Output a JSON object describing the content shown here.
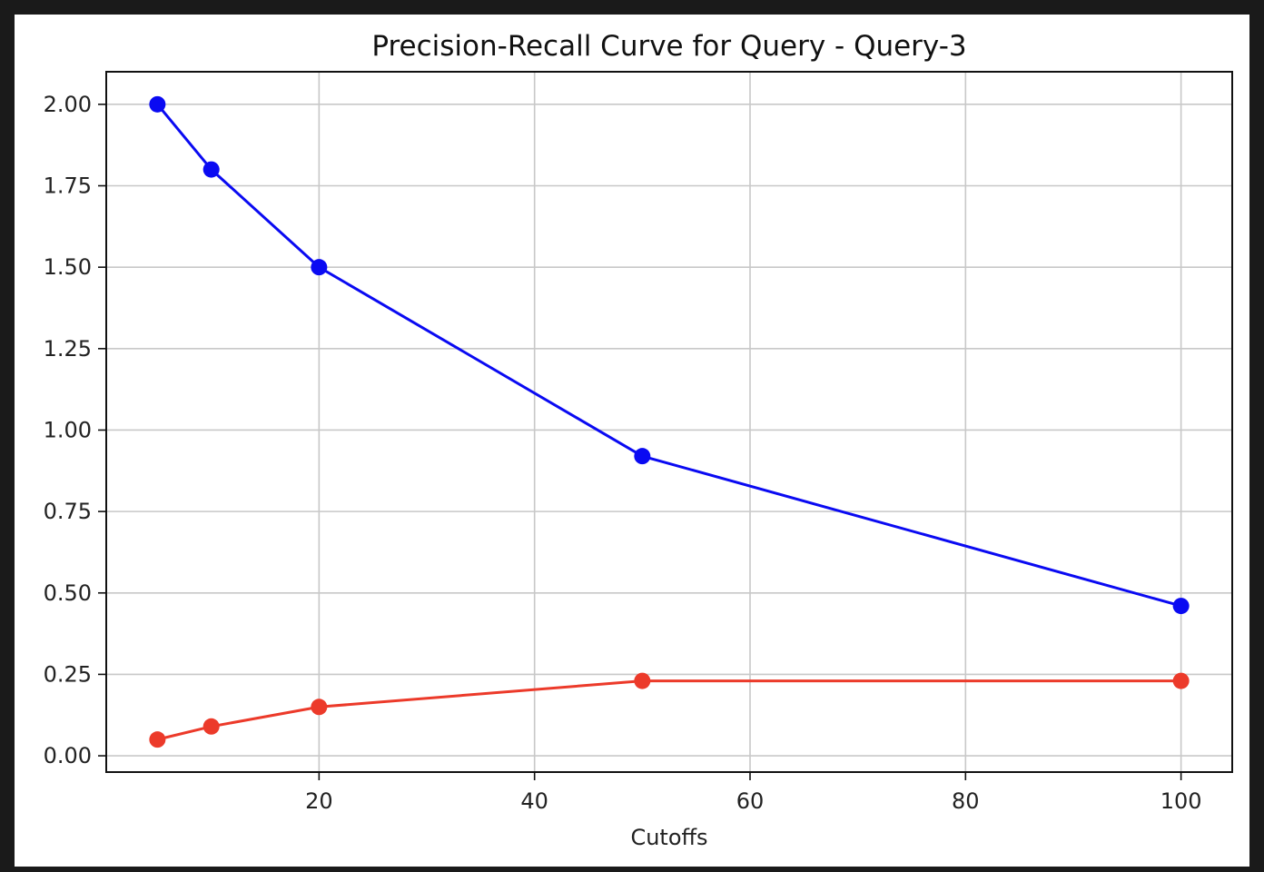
{
  "chart_data": {
    "type": "line",
    "title": "Precision-Recall Curve for Query - Query-3",
    "xlabel": "Cutoffs",
    "ylabel": "",
    "xlim": [
      0.25,
      104.75
    ],
    "ylim": [
      -0.05,
      2.1
    ],
    "x_ticks": [
      20,
      40,
      60,
      80,
      100
    ],
    "y_ticks": [
      0.0,
      0.25,
      0.5,
      0.75,
      1.0,
      1.25,
      1.5,
      1.75,
      2.0
    ],
    "x_tick_labels": [
      "20",
      "40",
      "60",
      "80",
      "100"
    ],
    "y_tick_labels": [
      "0.00",
      "0.25",
      "0.50",
      "0.75",
      "1.00",
      "1.25",
      "1.50",
      "1.75",
      "2.00"
    ],
    "grid": true,
    "x": [
      5,
      10,
      20,
      50,
      100
    ],
    "series": [
      {
        "values": [
          2.0,
          1.8,
          1.5,
          0.92,
          0.46
        ],
        "color": "#0a0af2",
        "marker": "circle"
      },
      {
        "values": [
          0.05,
          0.09,
          0.15,
          0.23,
          0.23
        ],
        "color": "#ec3a2a",
        "marker": "circle"
      }
    ]
  }
}
